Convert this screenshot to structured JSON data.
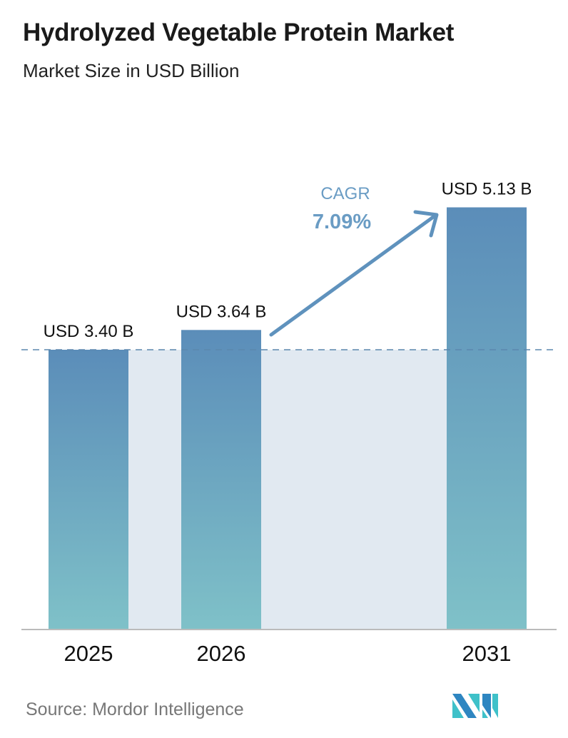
{
  "title": "Hydrolyzed Vegetable Protein Market",
  "subtitle": "Market Size in USD Billion",
  "source": "Source:  Mordor Intelligence",
  "logo_text": "MI",
  "colors": {
    "bar_top": "#5b8db9",
    "bar_bottom": "#7fc1c8",
    "shade": "#e1e9f1",
    "accent": "#5f92bd",
    "dash": "#5b87ad"
  },
  "chart_data": {
    "type": "bar",
    "categories": [
      "2025",
      "2026",
      "2031"
    ],
    "values": [
      3.4,
      3.64,
      5.13
    ],
    "data_labels": [
      "USD 3.40 B",
      "USD 3.64 B",
      "USD 5.13 B"
    ],
    "annotation": {
      "label": "CAGR",
      "value": "7.09%"
    },
    "ylim": [
      0,
      5.13
    ],
    "grid": false,
    "xlabel": "",
    "ylabel": ""
  }
}
